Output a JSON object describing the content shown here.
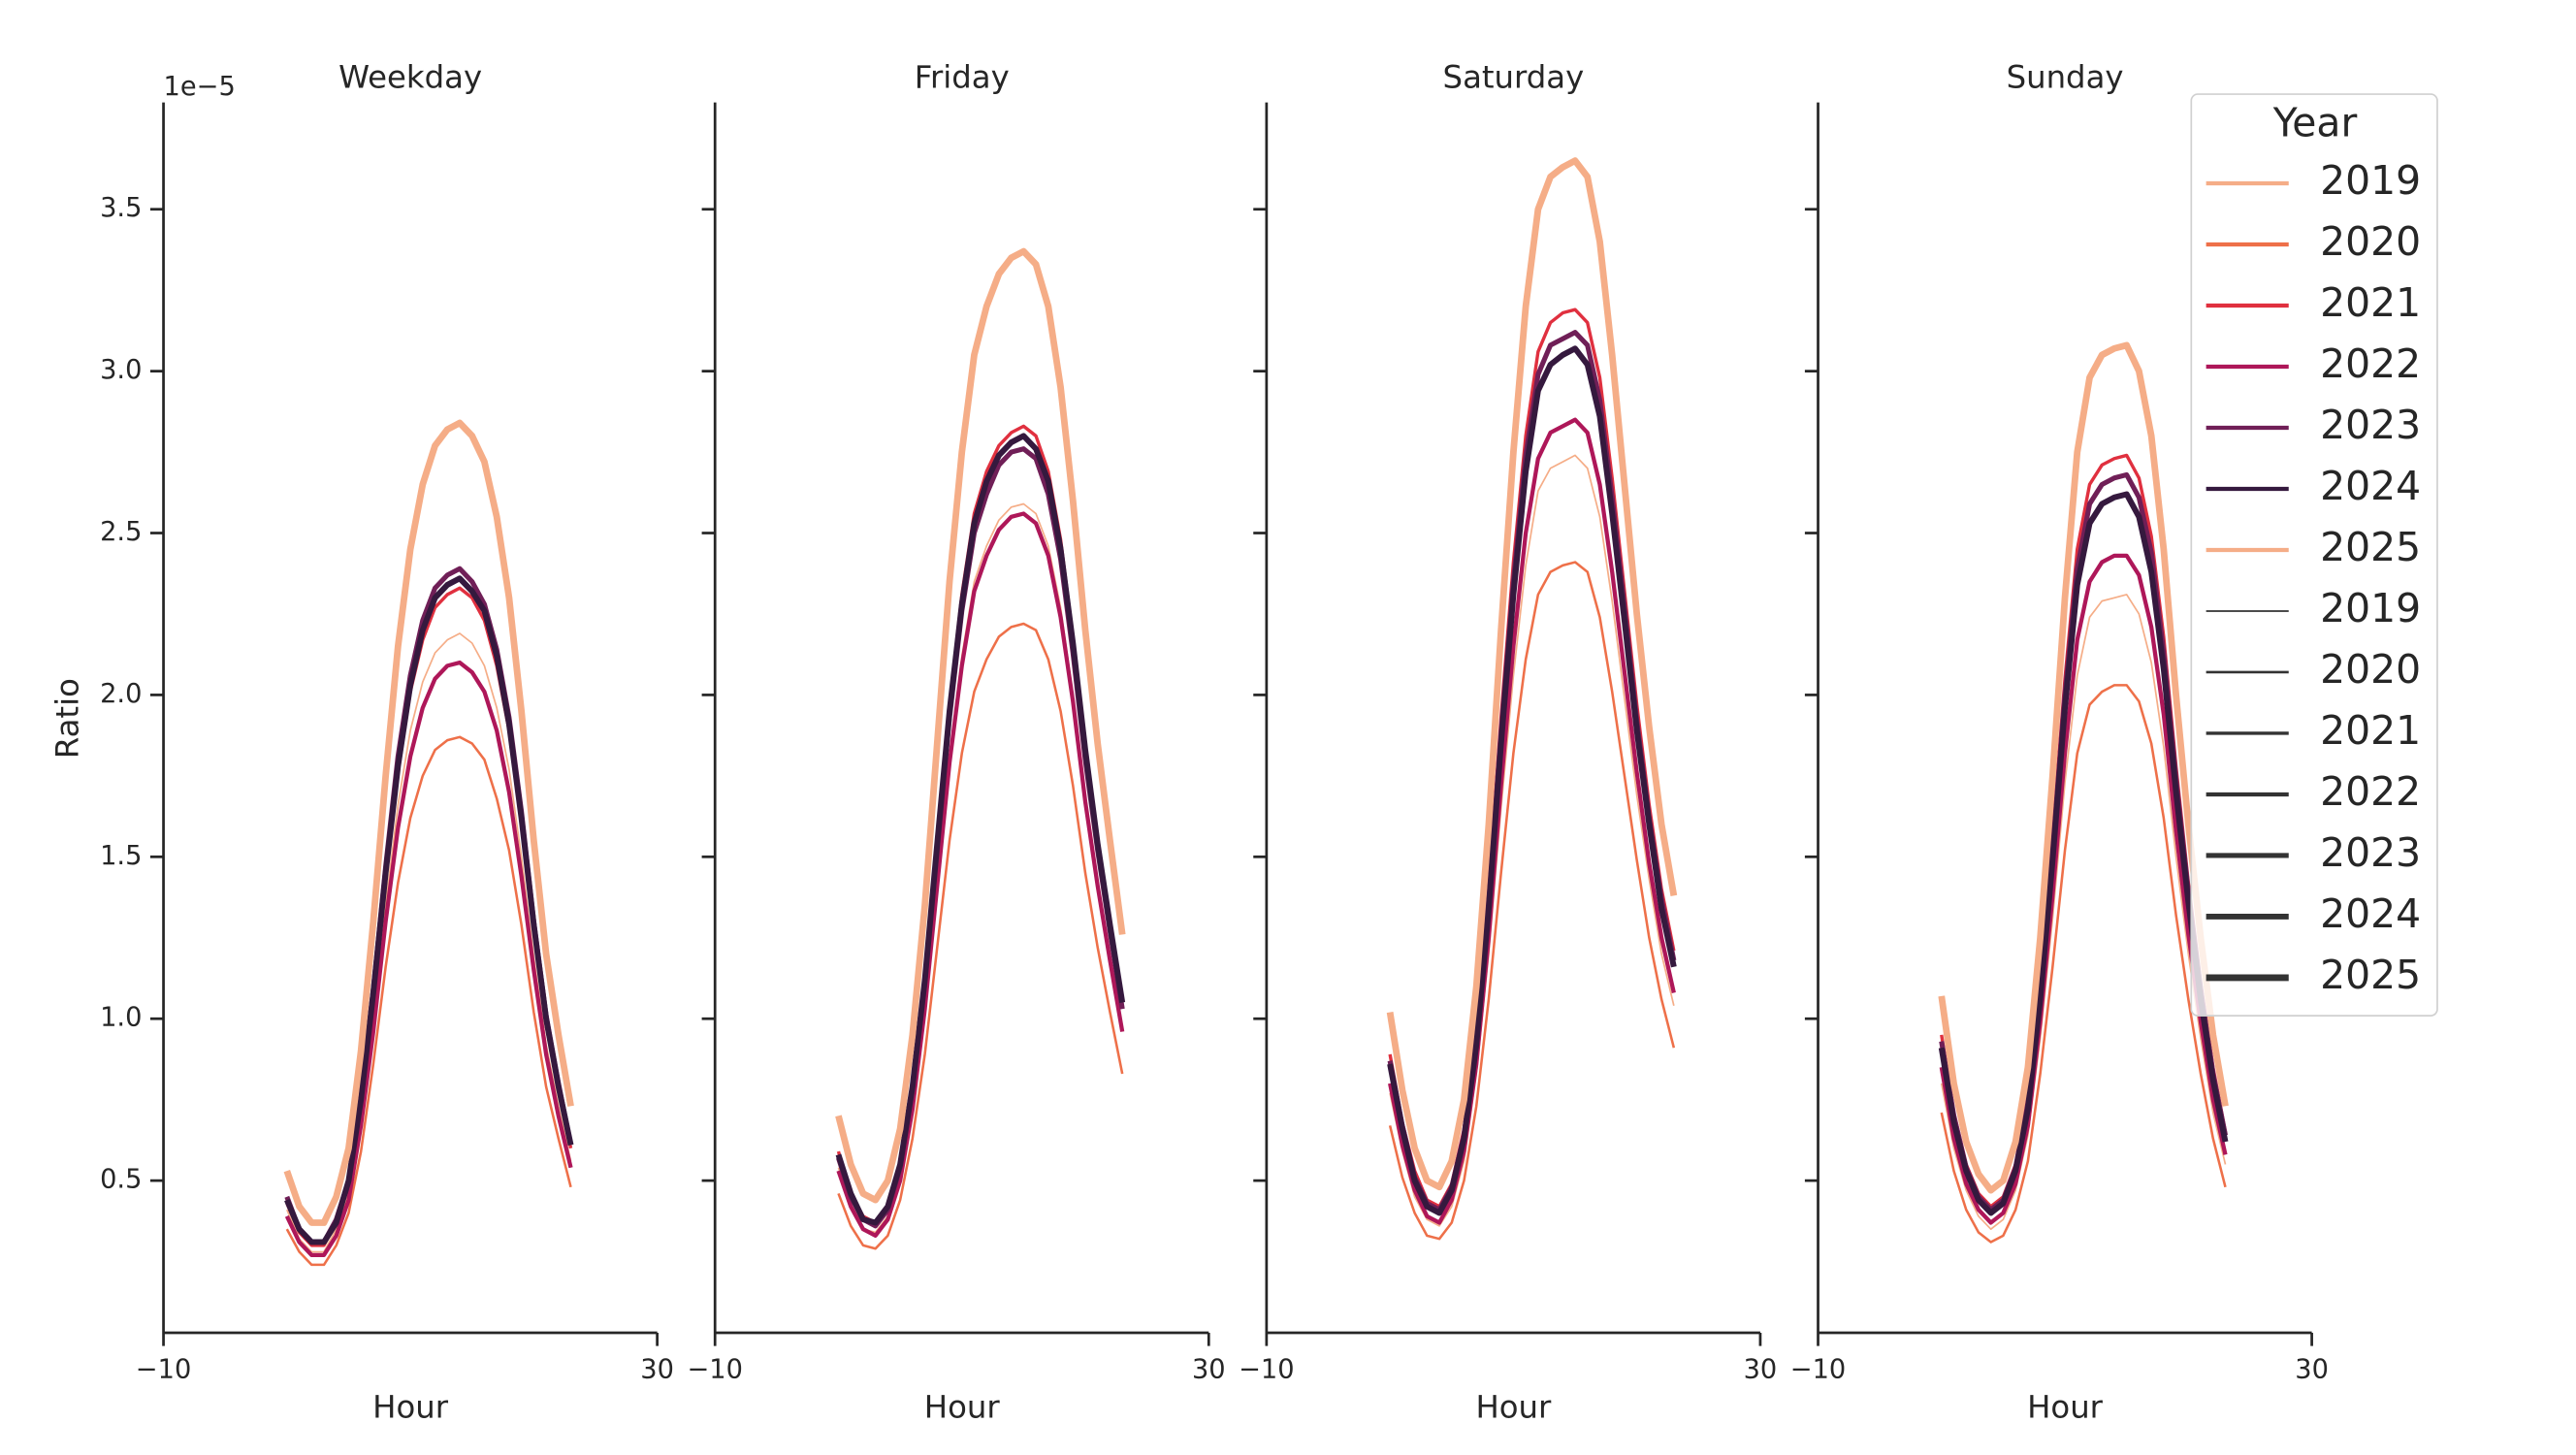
{
  "chart_data": [
    {
      "type": "line",
      "title": "Weekday",
      "x_label": "Hour",
      "y_label": "Ratio",
      "offset_label": "1e−5",
      "x": [
        0,
        1,
        2,
        3,
        4,
        5,
        6,
        7,
        8,
        9,
        10,
        11,
        12,
        13,
        14,
        15,
        16,
        17,
        18,
        19,
        20,
        21,
        22,
        23
      ],
      "xlim": [
        -10,
        30
      ],
      "xticks": [
        {
          "value": -10,
          "label": "−10"
        },
        30
      ],
      "ylim": [
        0.03,
        3.83
      ],
      "yticks": [
        0.5,
        {
          "value": 1,
          "label": "1.0"
        },
        1.5,
        {
          "value": 2,
          "label": "2.0"
        },
        2.5,
        {
          "value": 3,
          "label": "3.0"
        },
        3.5
      ],
      "series": [
        {
          "name": "2019",
          "color": "#f5ad87",
          "width": 1,
          "values": [
            0.41,
            0.32,
            0.28,
            0.28,
            0.35,
            0.46,
            0.69,
            1.0,
            1.35,
            1.66,
            1.89,
            2.04,
            2.13,
            2.17,
            2.19,
            2.16,
            2.09,
            1.96,
            1.77,
            1.5,
            1.19,
            0.92,
            0.73,
            0.56
          ]
        },
        {
          "name": "2020",
          "color": "#ee7049",
          "width": 1.5,
          "values": [
            0.35,
            0.28,
            0.24,
            0.24,
            0.3,
            0.4,
            0.59,
            0.86,
            1.16,
            1.42,
            1.62,
            1.75,
            1.83,
            1.86,
            1.87,
            1.85,
            1.8,
            1.68,
            1.52,
            1.29,
            1.02,
            0.79,
            0.63,
            0.48
          ]
        },
        {
          "name": "2021",
          "color": "#e0303f",
          "width": 2,
          "values": [
            0.43,
            0.34,
            0.3,
            0.3,
            0.37,
            0.49,
            0.74,
            1.07,
            1.44,
            1.76,
            2.01,
            2.17,
            2.27,
            2.31,
            2.33,
            2.3,
            2.23,
            2.09,
            1.89,
            1.6,
            1.27,
            0.98,
            0.78,
            0.6
          ]
        },
        {
          "name": "2022",
          "color": "#ae1759",
          "width": 2.5,
          "values": [
            0.39,
            0.31,
            0.27,
            0.27,
            0.33,
            0.44,
            0.67,
            0.96,
            1.3,
            1.59,
            1.81,
            1.96,
            2.05,
            2.09,
            2.1,
            2.07,
            2.01,
            1.89,
            1.7,
            1.44,
            1.15,
            0.89,
            0.7,
            0.54
          ]
        },
        {
          "name": "2023",
          "color": "#701f57",
          "width": 3,
          "values": [
            0.45,
            0.35,
            0.31,
            0.31,
            0.38,
            0.5,
            0.76,
            1.09,
            1.47,
            1.81,
            2.06,
            2.23,
            2.33,
            2.37,
            2.39,
            2.35,
            2.28,
            2.14,
            1.93,
            1.64,
            1.3,
            1.01,
            0.8,
            0.61
          ]
        },
        {
          "name": "2024",
          "color": "#35193e",
          "width": 3.5,
          "values": [
            0.44,
            0.35,
            0.31,
            0.31,
            0.37,
            0.5,
            0.75,
            1.08,
            1.45,
            1.78,
            2.03,
            2.2,
            2.3,
            2.34,
            2.36,
            2.32,
            2.26,
            2.12,
            1.91,
            1.62,
            1.29,
            1.0,
            0.79,
            0.61
          ]
        },
        {
          "name": "2025",
          "color": "#f5ad87",
          "width": 4,
          "values": [
            0.53,
            0.42,
            0.37,
            0.37,
            0.45,
            0.6,
            0.9,
            1.3,
            1.75,
            2.15,
            2.45,
            2.65,
            2.77,
            2.82,
            2.84,
            2.8,
            2.72,
            2.55,
            2.3,
            1.95,
            1.55,
            1.2,
            0.95,
            0.73
          ]
        }
      ]
    },
    {
      "type": "line",
      "title": "Friday",
      "x_label": "Hour",
      "x": [
        0,
        1,
        2,
        3,
        4,
        5,
        6,
        7,
        8,
        9,
        10,
        11,
        12,
        13,
        14,
        15,
        16,
        17,
        18,
        19,
        20,
        21,
        22,
        23
      ],
      "xlim": [
        -10,
        30
      ],
      "xticks": [
        {
          "value": -10,
          "label": "−10"
        },
        30
      ],
      "ylim": [
        0.03,
        3.83
      ],
      "yticks": [
        0.5,
        1,
        1.5,
        2,
        2.5,
        3,
        3.5
      ],
      "series": [
        {
          "name": "2019",
          "color": "#f5ad87",
          "width": 1,
          "values": [
            0.54,
            0.42,
            0.35,
            0.34,
            0.39,
            0.51,
            0.73,
            1.04,
            1.42,
            1.81,
            2.12,
            2.35,
            2.46,
            2.54,
            2.58,
            2.59,
            2.56,
            2.46,
            2.27,
            2.0,
            1.69,
            1.42,
            1.19,
            0.97
          ]
        },
        {
          "name": "2020",
          "color": "#ee7049",
          "width": 1.5,
          "values": [
            0.46,
            0.36,
            0.3,
            0.29,
            0.33,
            0.44,
            0.63,
            0.89,
            1.22,
            1.55,
            1.82,
            2.01,
            2.11,
            2.18,
            2.21,
            2.22,
            2.2,
            2.11,
            1.95,
            1.72,
            1.45,
            1.22,
            1.02,
            0.83
          ]
        },
        {
          "name": "2021",
          "color": "#e0303f",
          "width": 2,
          "values": [
            0.59,
            0.46,
            0.39,
            0.37,
            0.42,
            0.55,
            0.8,
            1.13,
            1.55,
            1.97,
            2.31,
            2.56,
            2.69,
            2.77,
            2.81,
            2.83,
            2.8,
            2.69,
            2.48,
            2.18,
            1.85,
            1.55,
            1.3,
            1.06
          ]
        },
        {
          "name": "2022",
          "color": "#ae1759",
          "width": 2.5,
          "values": [
            0.53,
            0.42,
            0.35,
            0.33,
            0.38,
            0.5,
            0.72,
            1.03,
            1.41,
            1.79,
            2.09,
            2.32,
            2.43,
            2.51,
            2.55,
            2.56,
            2.53,
            2.43,
            2.24,
            1.98,
            1.67,
            1.41,
            1.18,
            0.96
          ]
        },
        {
          "name": "2023",
          "color": "#701f57",
          "width": 3,
          "values": [
            0.57,
            0.45,
            0.38,
            0.36,
            0.41,
            0.54,
            0.78,
            1.11,
            1.52,
            1.93,
            2.26,
            2.5,
            2.62,
            2.71,
            2.75,
            2.76,
            2.73,
            2.62,
            2.42,
            2.13,
            1.8,
            1.52,
            1.27,
            1.03
          ]
        },
        {
          "name": "2024",
          "color": "#35193e",
          "width": 3.5,
          "values": [
            0.58,
            0.46,
            0.38,
            0.37,
            0.42,
            0.55,
            0.79,
            1.12,
            1.54,
            1.95,
            2.28,
            2.53,
            2.66,
            2.74,
            2.78,
            2.8,
            2.76,
            2.66,
            2.45,
            2.16,
            1.83,
            1.54,
            1.29,
            1.05
          ]
        },
        {
          "name": "2025",
          "color": "#f5ad87",
          "width": 4,
          "values": [
            0.7,
            0.55,
            0.46,
            0.44,
            0.5,
            0.66,
            0.95,
            1.35,
            1.85,
            2.35,
            2.75,
            3.05,
            3.2,
            3.3,
            3.35,
            3.37,
            3.33,
            3.2,
            2.95,
            2.6,
            2.2,
            1.85,
            1.55,
            1.26
          ]
        }
      ]
    },
    {
      "type": "line",
      "title": "Saturday",
      "x_label": "Hour",
      "x": [
        0,
        1,
        2,
        3,
        4,
        5,
        6,
        7,
        8,
        9,
        10,
        11,
        12,
        13,
        14,
        15,
        16,
        17,
        18,
        19,
        20,
        21,
        22,
        23
      ],
      "xlim": [
        -10,
        30
      ],
      "xticks": [
        {
          "value": -10,
          "label": "−10"
        },
        30
      ],
      "ylim": [
        0.03,
        3.83
      ],
      "yticks": [
        0.5,
        1,
        1.5,
        2,
        2.5,
        3,
        3.5
      ],
      "series": [
        {
          "name": "2019",
          "color": "#f5ad87",
          "width": 1,
          "values": [
            0.77,
            0.59,
            0.45,
            0.38,
            0.36,
            0.42,
            0.56,
            0.83,
            1.2,
            1.65,
            2.06,
            2.4,
            2.63,
            2.7,
            2.72,
            2.74,
            2.7,
            2.55,
            2.29,
            1.99,
            1.69,
            1.43,
            1.2,
            1.04
          ]
        },
        {
          "name": "2020",
          "color": "#ee7049",
          "width": 1.5,
          "values": [
            0.67,
            0.51,
            0.4,
            0.33,
            0.32,
            0.37,
            0.5,
            0.73,
            1.06,
            1.45,
            1.82,
            2.11,
            2.31,
            2.38,
            2.4,
            2.41,
            2.38,
            2.24,
            2.01,
            1.75,
            1.49,
            1.25,
            1.06,
            0.91
          ]
        },
        {
          "name": "2021",
          "color": "#e0303f",
          "width": 2,
          "values": [
            0.89,
            0.68,
            0.53,
            0.44,
            0.42,
            0.49,
            0.66,
            0.96,
            1.4,
            1.93,
            2.41,
            2.8,
            3.06,
            3.15,
            3.18,
            3.19,
            3.15,
            2.98,
            2.67,
            2.32,
            1.97,
            1.66,
            1.4,
            1.21
          ]
        },
        {
          "name": "2022",
          "color": "#ae1759",
          "width": 2.5,
          "values": [
            0.8,
            0.61,
            0.47,
            0.39,
            0.37,
            0.44,
            0.59,
            0.86,
            1.25,
            1.72,
            2.15,
            2.5,
            2.73,
            2.81,
            2.83,
            2.85,
            2.81,
            2.65,
            2.38,
            2.07,
            1.76,
            1.48,
            1.25,
            1.08
          ]
        },
        {
          "name": "2023",
          "color": "#701f57",
          "width": 3,
          "values": [
            0.87,
            0.67,
            0.51,
            0.43,
            0.41,
            0.48,
            0.64,
            0.94,
            1.37,
            1.88,
            2.35,
            2.74,
            2.99,
            3.08,
            3.1,
            3.12,
            3.08,
            2.91,
            2.61,
            2.27,
            1.92,
            1.62,
            1.37,
            1.18
          ]
        },
        {
          "name": "2024",
          "color": "#35193e",
          "width": 3.5,
          "values": [
            0.86,
            0.66,
            0.5,
            0.42,
            0.4,
            0.47,
            0.63,
            0.92,
            1.34,
            1.85,
            2.31,
            2.69,
            2.94,
            3.02,
            3.05,
            3.07,
            3.02,
            2.86,
            2.56,
            2.23,
            1.89,
            1.6,
            1.34,
            1.16
          ]
        },
        {
          "name": "2025",
          "color": "#f5ad87",
          "width": 4,
          "values": [
            1.02,
            0.78,
            0.6,
            0.5,
            0.48,
            0.56,
            0.75,
            1.1,
            1.6,
            2.2,
            2.75,
            3.2,
            3.5,
            3.6,
            3.63,
            3.65,
            3.6,
            3.4,
            3.05,
            2.65,
            2.25,
            1.9,
            1.6,
            1.38
          ]
        }
      ]
    },
    {
      "type": "line",
      "title": "Sunday",
      "x_label": "Hour",
      "x": [
        0,
        1,
        2,
        3,
        4,
        5,
        6,
        7,
        8,
        9,
        10,
        11,
        12,
        13,
        14,
        15,
        16,
        17,
        18,
        19,
        20,
        21,
        22,
        23
      ],
      "xlim": [
        -10,
        30
      ],
      "xticks": [
        {
          "value": -10,
          "label": "−10"
        },
        30
      ],
      "ylim": [
        0.03,
        3.83
      ],
      "yticks": [
        0.5,
        1,
        1.5,
        2,
        2.5,
        3,
        3.5
      ],
      "series": [
        {
          "name": "2019",
          "color": "#f5ad87",
          "width": 1,
          "values": [
            0.8,
            0.6,
            0.47,
            0.39,
            0.35,
            0.38,
            0.47,
            0.64,
            0.94,
            1.31,
            1.73,
            2.06,
            2.24,
            2.29,
            2.3,
            2.31,
            2.25,
            2.1,
            1.84,
            1.5,
            1.2,
            0.94,
            0.71,
            0.55
          ]
        },
        {
          "name": "2020",
          "color": "#ee7049",
          "width": 1.5,
          "values": [
            0.71,
            0.53,
            0.41,
            0.34,
            0.31,
            0.33,
            0.41,
            0.56,
            0.83,
            1.16,
            1.52,
            1.82,
            1.97,
            2.01,
            2.03,
            2.03,
            1.98,
            1.85,
            1.62,
            1.32,
            1.06,
            0.83,
            0.63,
            0.48
          ]
        },
        {
          "name": "2021",
          "color": "#e0303f",
          "width": 2,
          "values": [
            0.95,
            0.71,
            0.55,
            0.46,
            0.42,
            0.45,
            0.55,
            0.76,
            1.11,
            1.56,
            2.05,
            2.45,
            2.65,
            2.71,
            2.73,
            2.74,
            2.67,
            2.49,
            2.18,
            1.78,
            1.42,
            1.11,
            0.85,
            0.65
          ]
        },
        {
          "name": "2022",
          "color": "#ae1759",
          "width": 2.5,
          "values": [
            0.85,
            0.63,
            0.49,
            0.41,
            0.37,
            0.4,
            0.49,
            0.67,
            0.99,
            1.38,
            1.82,
            2.17,
            2.35,
            2.41,
            2.43,
            2.43,
            2.37,
            2.21,
            1.94,
            1.58,
            1.26,
            0.99,
            0.75,
            0.58
          ]
        },
        {
          "name": "2023",
          "color": "#701f57",
          "width": 3,
          "values": [
            0.93,
            0.7,
            0.54,
            0.45,
            0.41,
            0.44,
            0.54,
            0.74,
            1.09,
            1.52,
            2.0,
            2.39,
            2.59,
            2.65,
            2.67,
            2.68,
            2.61,
            2.44,
            2.13,
            1.74,
            1.39,
            1.09,
            0.83,
            0.64
          ]
        },
        {
          "name": "2024",
          "color": "#35193e",
          "width": 3.5,
          "values": [
            0.91,
            0.68,
            0.53,
            0.44,
            0.4,
            0.43,
            0.53,
            0.72,
            1.06,
            1.49,
            1.96,
            2.34,
            2.53,
            2.59,
            2.61,
            2.62,
            2.55,
            2.38,
            2.08,
            1.7,
            1.36,
            1.06,
            0.81,
            0.62
          ]
        },
        {
          "name": "2025",
          "color": "#f5ad87",
          "width": 4,
          "values": [
            1.07,
            0.8,
            0.62,
            0.52,
            0.47,
            0.5,
            0.62,
            0.85,
            1.25,
            1.75,
            2.3,
            2.75,
            2.98,
            3.05,
            3.07,
            3.08,
            3.0,
            2.8,
            2.45,
            2.0,
            1.6,
            1.25,
            0.95,
            0.73
          ]
        }
      ]
    }
  ],
  "legend": {
    "title": "Year",
    "position": "upper right",
    "size_color": "#333333",
    "hue": [
      {
        "name": "2019",
        "color": "#f5ad87"
      },
      {
        "name": "2020",
        "color": "#ee7049"
      },
      {
        "name": "2021",
        "color": "#e0303f"
      },
      {
        "name": "2022",
        "color": "#ae1759"
      },
      {
        "name": "2023",
        "color": "#701f57"
      },
      {
        "name": "2024",
        "color": "#35193e"
      },
      {
        "name": "2025",
        "color": "#f5ad87"
      }
    ],
    "size": [
      {
        "name": "2019",
        "width": 1
      },
      {
        "name": "2020",
        "width": 1.5
      },
      {
        "name": "2021",
        "width": 2
      },
      {
        "name": "2022",
        "width": 2.5
      },
      {
        "name": "2023",
        "width": 3
      },
      {
        "name": "2024",
        "width": 3.5
      },
      {
        "name": "2025",
        "width": 4
      }
    ]
  }
}
